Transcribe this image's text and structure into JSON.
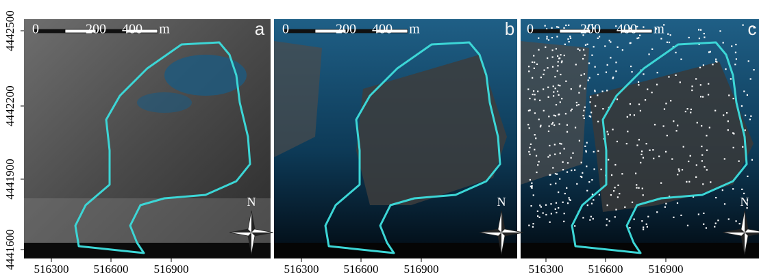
{
  "y_axis_labels": [
    4442500,
    4442200,
    4441900,
    4441600
  ],
  "panels": [
    {
      "label": "a",
      "scale_labels": [
        "0",
        "200",
        "400",
        "m"
      ],
      "north": "N",
      "x_axis_labels": [
        516300,
        516600,
        516900
      ]
    },
    {
      "label": "b",
      "scale_labels": [
        "0",
        "200",
        "400",
        "m"
      ],
      "north": "N",
      "x_axis_labels": [
        516300,
        516600,
        516900
      ]
    },
    {
      "label": "c",
      "scale_labels": [
        "0",
        "200",
        "400",
        "m"
      ],
      "north": "N",
      "x_axis_labels": [
        516300,
        516600,
        516900
      ]
    }
  ]
}
